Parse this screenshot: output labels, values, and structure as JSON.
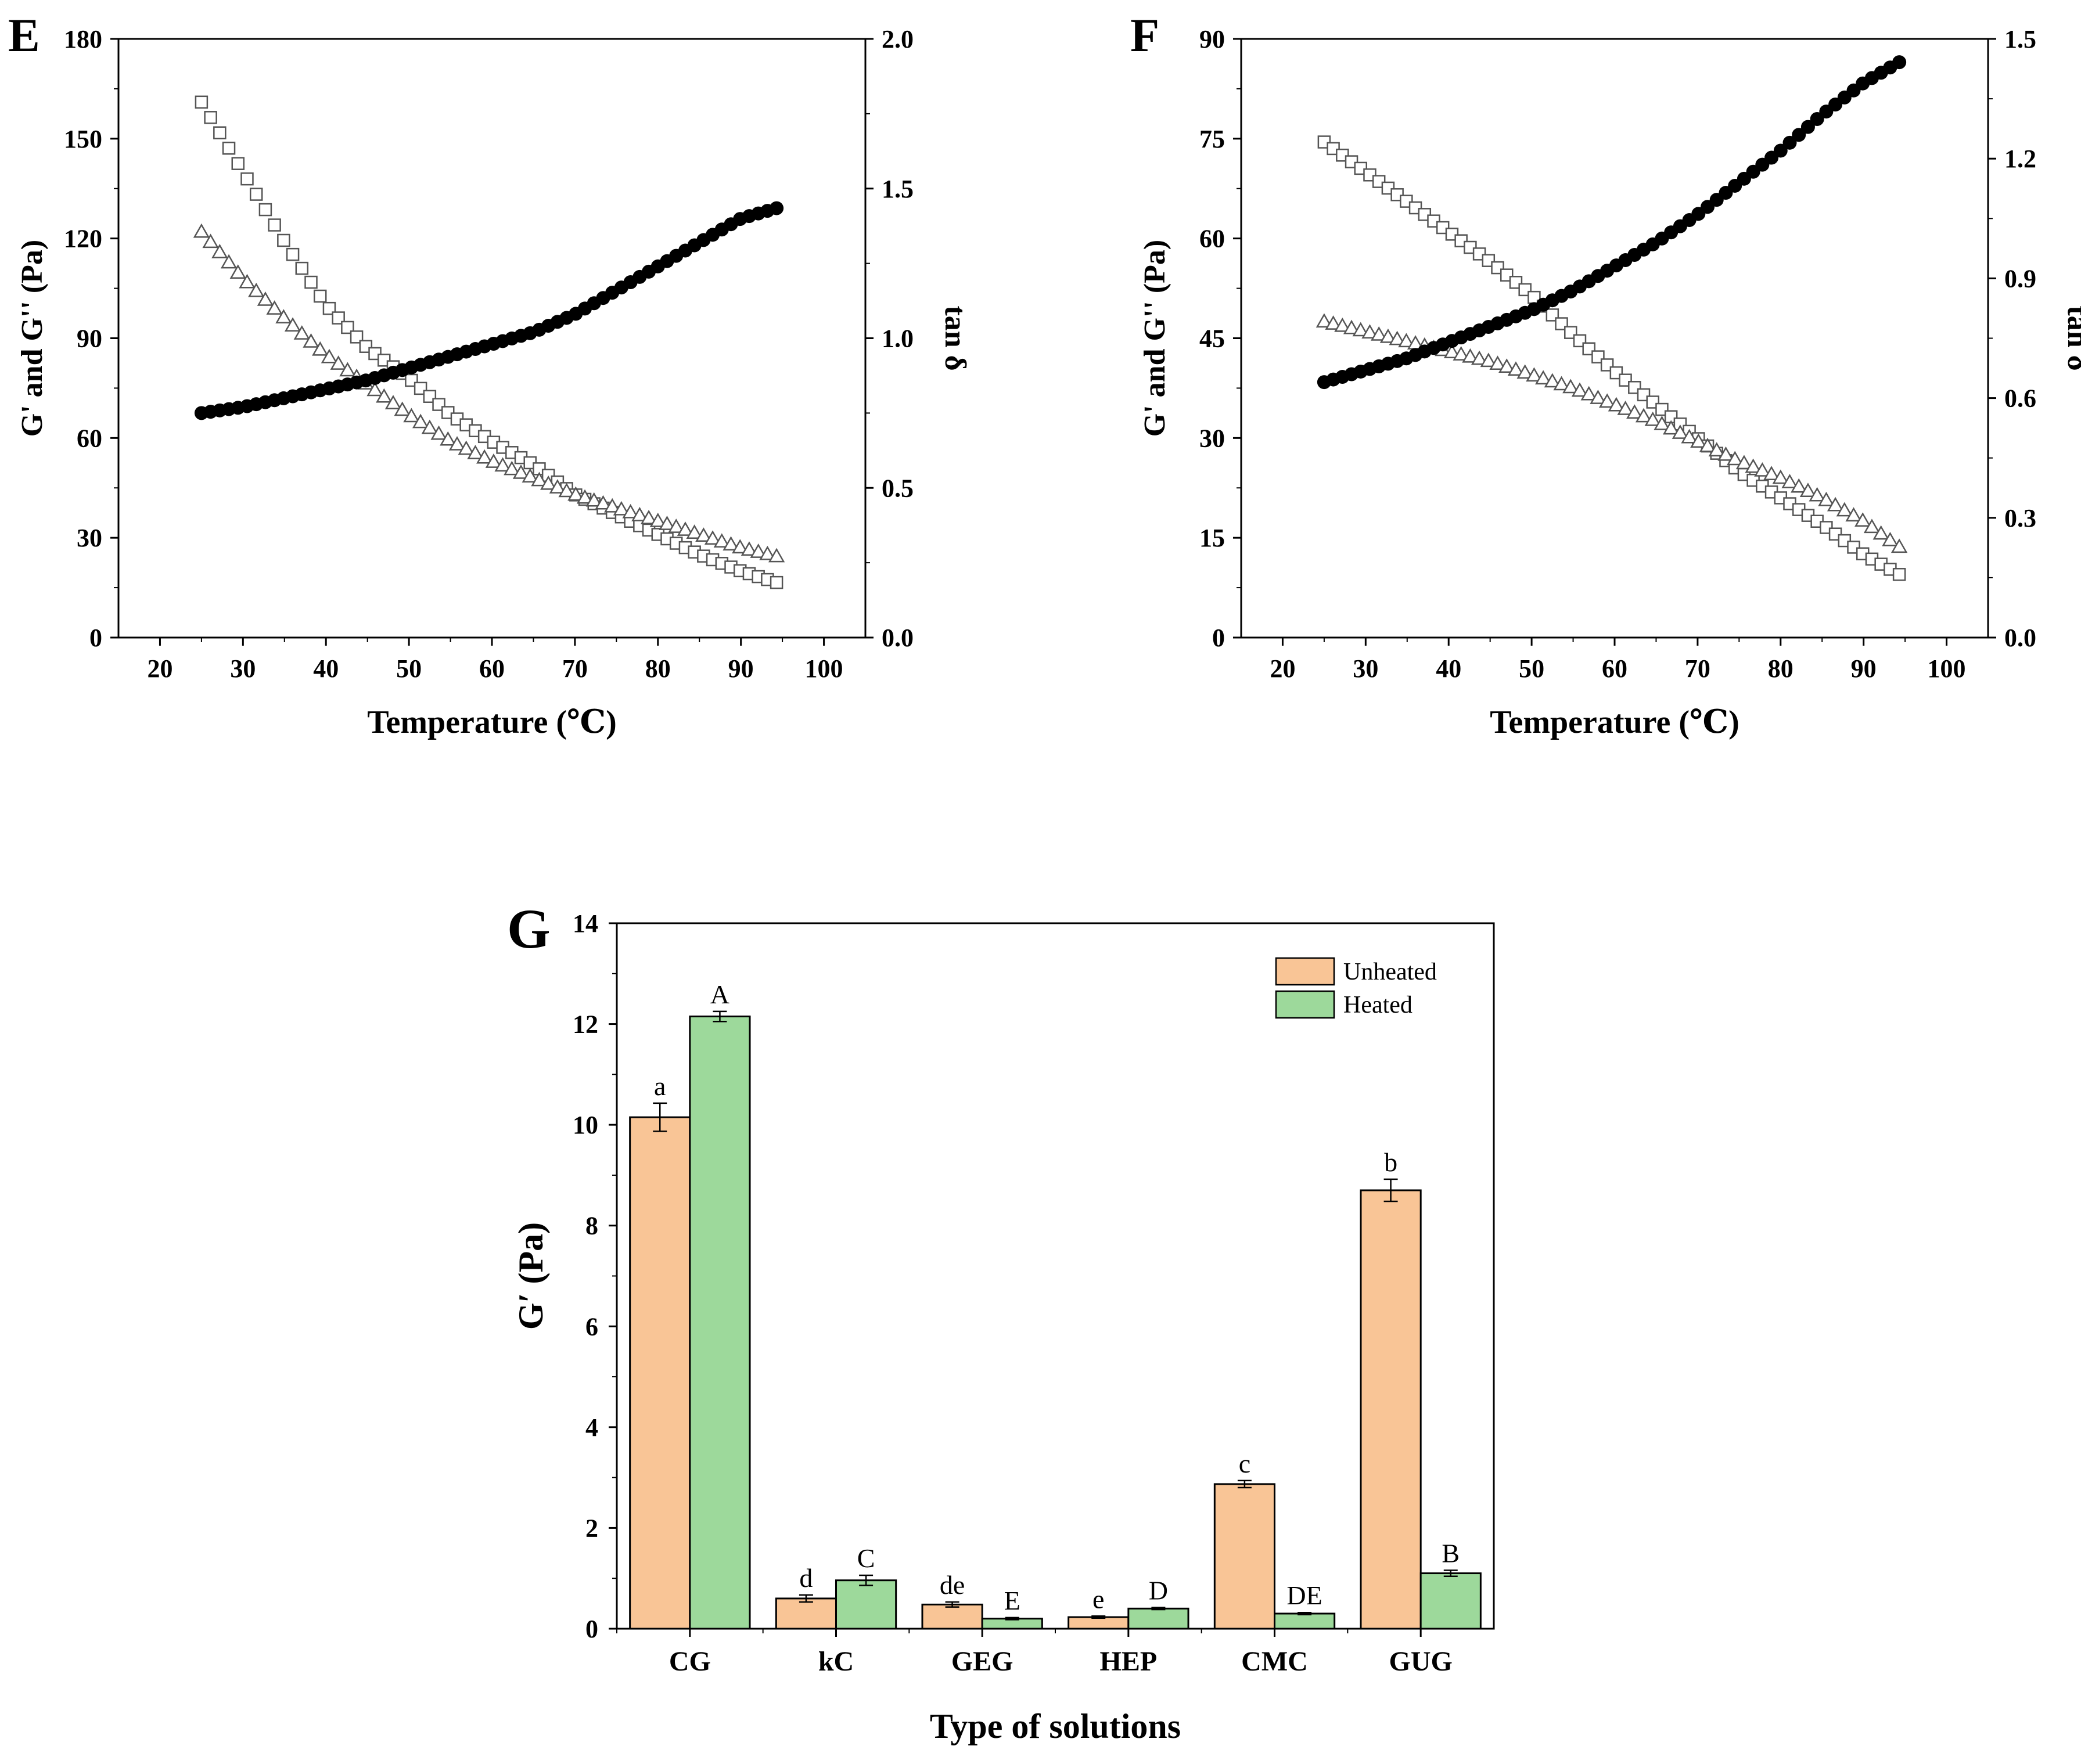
{
  "chart_data": [
    {
      "panel": "E",
      "type": "scatter",
      "xlabel": "Temperature (℃)",
      "ylabel": "G' and G'' (Pa)",
      "y2label": "tan δ",
      "xlim": [
        15,
        105
      ],
      "ylim": [
        0,
        180
      ],
      "y2lim": [
        0,
        2.0
      ],
      "xticks": [
        "20",
        "30",
        "40",
        "50",
        "60",
        "70",
        "80",
        "90",
        "100"
      ],
      "yticks": [
        "0",
        "30",
        "60",
        "90",
        "120",
        "150",
        "180"
      ],
      "y2ticks": [
        "0.0",
        "0.5",
        "1.0",
        "1.5",
        "2.0"
      ],
      "x": [
        25,
        30,
        35,
        40,
        45,
        50,
        55,
        60,
        65,
        70,
        75,
        80,
        85,
        90,
        95
      ],
      "series": [
        {
          "name": "G'",
          "marker": "open-square",
          "axis": "left",
          "values": [
            161,
            140,
            119,
            100,
            87,
            78,
            67,
            59,
            52,
            43,
            37,
            31,
            25,
            20,
            16
          ]
        },
        {
          "name": "G''",
          "marker": "open-triangle",
          "axis": "left",
          "values": [
            122,
            108,
            96,
            85,
            76,
            67,
            59,
            53,
            48,
            43,
            39,
            35,
            31,
            27,
            24
          ]
        },
        {
          "name": "tan δ",
          "marker": "filled-circle",
          "axis": "right",
          "values": [
            0.75,
            0.77,
            0.8,
            0.83,
            0.86,
            0.9,
            0.94,
            0.98,
            1.02,
            1.08,
            1.16,
            1.24,
            1.32,
            1.4,
            1.44
          ]
        }
      ]
    },
    {
      "panel": "F",
      "type": "scatter",
      "xlabel": "Temperature (℃)",
      "ylabel": "G' and G'' (Pa)",
      "y2label": "tan δ",
      "xlim": [
        15,
        105
      ],
      "ylim": [
        0,
        90
      ],
      "y2lim": [
        0,
        1.5
      ],
      "xticks": [
        "20",
        "30",
        "40",
        "50",
        "60",
        "70",
        "80",
        "90",
        "100"
      ],
      "yticks": [
        "0",
        "15",
        "30",
        "45",
        "60",
        "75",
        "90"
      ],
      "y2ticks": [
        "0.0",
        "0.3",
        "0.6",
        "0.9",
        "1.2",
        "1.5"
      ],
      "x": [
        25,
        30,
        35,
        40,
        45,
        50,
        55,
        60,
        65,
        70,
        75,
        80,
        85,
        90,
        95
      ],
      "series": [
        {
          "name": "G'",
          "marker": "open-square",
          "axis": "left",
          "values": [
            74.5,
            70,
            65.5,
            61,
            56.5,
            51.5,
            45.5,
            40,
            35,
            30,
            25,
            21,
            17,
            12.5,
            9
          ]
        },
        {
          "name": "G''",
          "marker": "open-triangle",
          "axis": "left",
          "values": [
            47.5,
            46,
            44.5,
            43,
            41.5,
            39.5,
            37.5,
            35,
            32.5,
            29.5,
            26.5,
            24,
            21,
            17.5,
            13
          ]
        },
        {
          "name": "tan δ",
          "marker": "filled-circle",
          "axis": "right",
          "values": [
            0.64,
            0.67,
            0.7,
            0.74,
            0.78,
            0.82,
            0.87,
            0.93,
            0.99,
            1.06,
            1.14,
            1.22,
            1.31,
            1.39,
            1.45
          ]
        }
      ]
    },
    {
      "panel": "G",
      "type": "bar",
      "xlabel": "Type of solutions",
      "ylabel": "G′ (Pa)",
      "ylim": [
        0,
        14
      ],
      "yticks": [
        "0",
        "2",
        "4",
        "6",
        "8",
        "10",
        "12",
        "14"
      ],
      "categories": [
        "CG",
        "kC",
        "GEG",
        "HEP",
        "CMC",
        "GUG"
      ],
      "series": [
        {
          "name": "Unheated",
          "color": "#f9c596",
          "values": [
            10.15,
            0.6,
            0.48,
            0.23,
            2.87,
            8.7
          ],
          "errors": [
            0.28,
            0.07,
            0.05,
            0.02,
            0.07,
            0.22
          ],
          "labels": [
            "a",
            "d",
            "de",
            "e",
            "c",
            "b"
          ]
        },
        {
          "name": "Heated",
          "color": "#9dd99b",
          "values": [
            12.15,
            0.96,
            0.2,
            0.4,
            0.3,
            1.1
          ],
          "errors": [
            0.1,
            0.1,
            0.02,
            0.02,
            0.02,
            0.06
          ],
          "labels": [
            "A",
            "C",
            "E",
            "D",
            "DE",
            "B"
          ]
        }
      ],
      "legend": {
        "position": "top-right",
        "items": [
          "Unheated",
          "Heated"
        ]
      }
    }
  ]
}
